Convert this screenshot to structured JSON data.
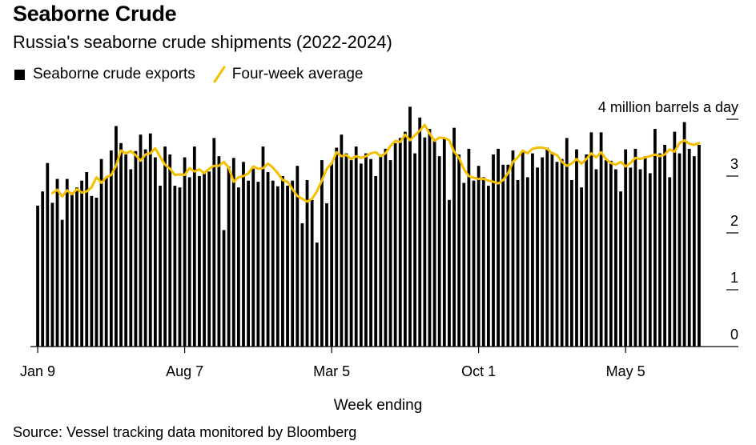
{
  "header": {
    "title": "Seaborne Crude",
    "subtitle": "Russia's seaborne crude shipments (2022-2024)"
  },
  "legend": {
    "bar_label": "Seaborne crude exports",
    "line_label": "Four-week average"
  },
  "source": "Source: Vessel tracking data monitored by Bloomberg",
  "colors": {
    "bars": "#000000",
    "line": "#f5c000",
    "axis": "#000000"
  },
  "chart_data": {
    "type": "bar",
    "title": "Seaborne Crude",
    "subtitle": "Russia's seaborne crude shipments (2022-2024)",
    "xlabel": "Week ending",
    "ylabel": "4 million barrels a day",
    "ylim": [
      0,
      4
    ],
    "yticks": [
      0,
      1,
      2,
      3,
      4
    ],
    "ytick_labels": [
      "0",
      "1",
      "2",
      "3",
      "4 million barrels a day"
    ],
    "x_tick_labels": [
      {
        "label": "Jan 9",
        "index": 0
      },
      {
        "label": "Aug 7",
        "index": 30
      },
      {
        "label": "Mar 5",
        "index": 60
      },
      {
        "label": "Oct 1",
        "index": 90
      },
      {
        "label": "May 5",
        "index": 120
      }
    ],
    "series": [
      {
        "name": "Seaborne crude exports",
        "type": "bar",
        "values": [
          2.48,
          2.73,
          3.23,
          2.53,
          2.95,
          2.23,
          2.95,
          2.68,
          2.8,
          2.92,
          3.07,
          2.65,
          2.62,
          3.3,
          2.97,
          3.45,
          3.88,
          3.58,
          3.38,
          3.12,
          3.44,
          3.73,
          3.47,
          3.75,
          3.33,
          2.83,
          3.52,
          3.38,
          2.83,
          2.8,
          3.33,
          2.98,
          3.52,
          3.0,
          3.07,
          3.08,
          3.67,
          3.35,
          2.05,
          3.17,
          3.32,
          2.8,
          3.25,
          2.92,
          3.13,
          2.9,
          3.52,
          3.07,
          2.92,
          2.82,
          3.0,
          2.83,
          2.92,
          3.18,
          2.17,
          2.93,
          2.58,
          1.83,
          3.28,
          2.52,
          3.23,
          3.5,
          3.73,
          3.4,
          3.28,
          3.52,
          3.22,
          3.4,
          3.3,
          3.0,
          3.35,
          3.48,
          3.28,
          3.58,
          3.67,
          3.78,
          4.22,
          3.4,
          4.03,
          3.68,
          3.83,
          3.63,
          3.35,
          3.67,
          2.58,
          3.85,
          3.38,
          2.88,
          3.48,
          2.92,
          3.18,
          2.98,
          2.83,
          3.38,
          3.48,
          3.2,
          3.2,
          3.45,
          2.93,
          3.43,
          2.98,
          3.4,
          3.15,
          3.33,
          3.5,
          3.42,
          3.25,
          3.3,
          3.67,
          2.93,
          3.47,
          2.8,
          3.38,
          3.77,
          3.12,
          3.77,
          3.28,
          3.27,
          3.12,
          2.73,
          3.47,
          3.15,
          3.48,
          3.12,
          3.35,
          3.05,
          3.83,
          3.4,
          3.55,
          2.98,
          3.78,
          3.4,
          3.95,
          3.48,
          3.35,
          3.55
        ]
      },
      {
        "name": "Four-week average",
        "type": "line",
        "x_start_index": 3,
        "values": [
          2.7,
          2.76,
          2.64,
          2.75,
          2.68,
          2.77,
          2.71,
          2.73,
          2.8,
          2.98,
          2.88,
          2.98,
          3.02,
          3.18,
          3.45,
          3.4,
          3.44,
          3.37,
          3.27,
          3.38,
          3.4,
          3.49,
          3.34,
          3.2,
          3.13,
          3.02,
          3.03,
          3.02,
          3.14,
          3.08,
          3.12,
          3.05,
          3.13,
          3.18,
          3.18,
          3.25,
          3.15,
          2.9,
          2.98,
          3.0,
          3.05,
          3.17,
          3.13,
          3.14,
          3.22,
          3.15,
          3.05,
          2.93,
          2.9,
          2.77,
          2.65,
          2.6,
          2.55,
          2.6,
          2.73,
          2.92,
          3.13,
          3.22,
          3.42,
          3.35,
          3.37,
          3.3,
          3.35,
          3.32,
          3.35,
          3.4,
          3.42,
          3.35,
          3.4,
          3.53,
          3.62,
          3.6,
          3.73,
          3.63,
          3.72,
          3.8,
          3.9,
          3.75,
          3.62,
          3.68,
          3.67,
          3.63,
          3.43,
          3.32,
          3.12,
          3.0,
          2.97,
          2.95,
          2.95,
          2.92,
          2.9,
          2.87,
          2.93,
          3.05,
          3.25,
          3.33,
          3.45,
          3.4,
          3.48,
          3.5,
          3.5,
          3.48,
          3.4,
          3.37,
          3.25,
          3.18,
          3.22,
          3.3,
          3.22,
          3.3,
          3.4,
          3.33,
          3.42,
          3.3,
          3.23,
          3.2,
          3.25,
          3.17,
          3.23,
          3.32,
          3.3,
          3.33,
          3.35,
          3.38,
          3.35,
          3.38,
          3.47,
          3.43,
          3.58,
          3.63,
          3.57,
          3.55,
          3.58
        ]
      }
    ]
  }
}
